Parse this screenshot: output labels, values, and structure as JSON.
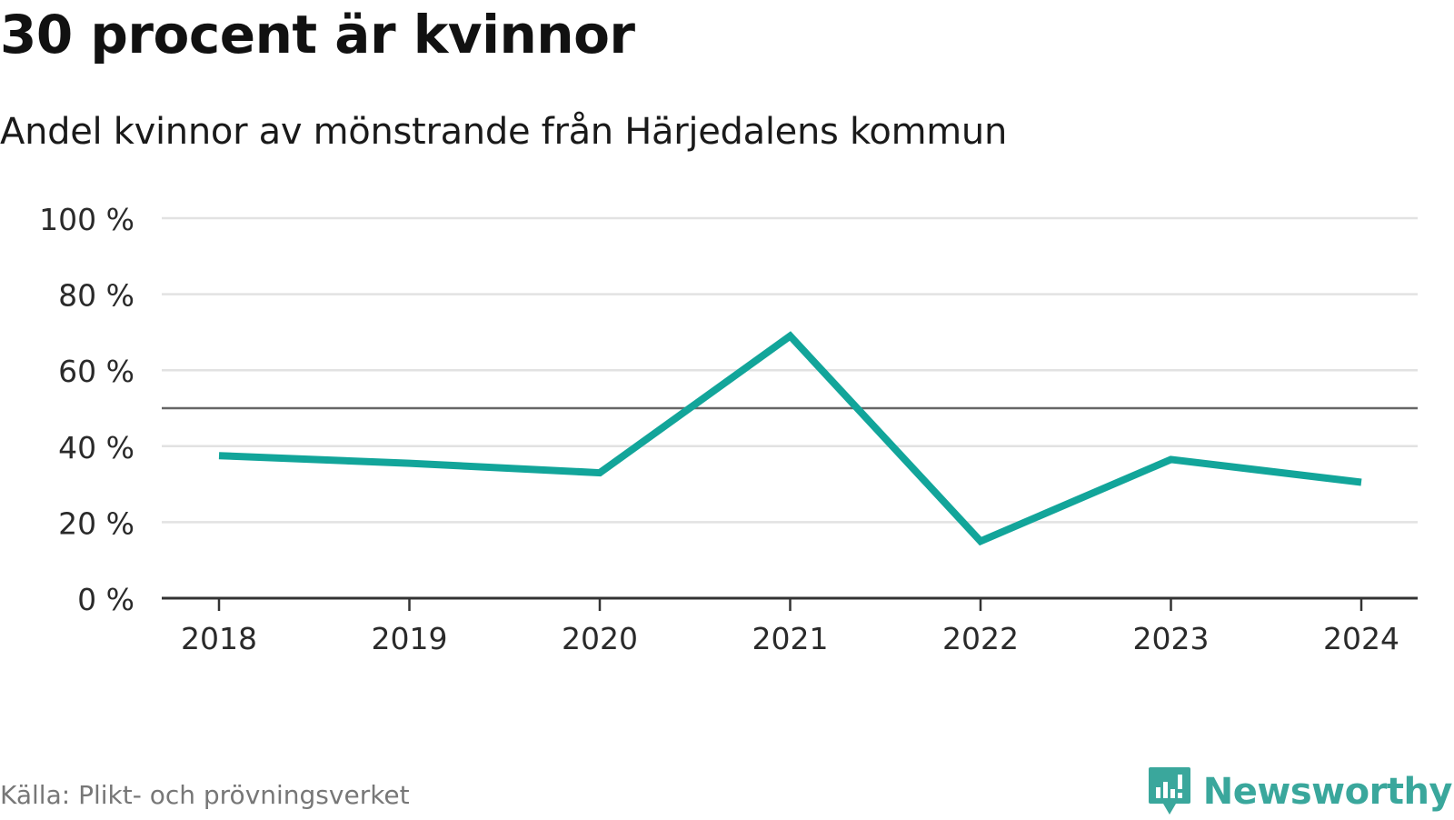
{
  "header": {
    "title": "30 procent är kvinnor",
    "subtitle": "Andel kvinnor av mönstrande från Härjedalens kommun"
  },
  "footer": {
    "source": "Källa: Plikt- och prövningsverket",
    "brand": "Newsworthy"
  },
  "colors": {
    "series": "#12a59a",
    "gridline": "#e2e2e2",
    "reference_line": "#666666",
    "axis": "#333333",
    "brand": "#3aa79c",
    "source_text": "#777777"
  },
  "chart_data": {
    "type": "line",
    "title": "30 procent är kvinnor",
    "subtitle": "Andel kvinnor av mönstrande från Härjedalens kommun",
    "xlabel": "",
    "ylabel": "",
    "categories": [
      "2018",
      "2019",
      "2020",
      "2021",
      "2022",
      "2023",
      "2024"
    ],
    "series": [
      {
        "name": "Andel kvinnor",
        "values": [
          37.5,
          35.5,
          33,
          69,
          15,
          36.5,
          30.5
        ]
      }
    ],
    "ylim": [
      0,
      100
    ],
    "yticks": [
      0,
      20,
      40,
      60,
      80,
      100
    ],
    "ytick_labels": [
      "0 %",
      "20 %",
      "40 %",
      "60 %",
      "80 %",
      "100 %"
    ],
    "reference_line": 50,
    "grid": true,
    "legend": "none"
  }
}
